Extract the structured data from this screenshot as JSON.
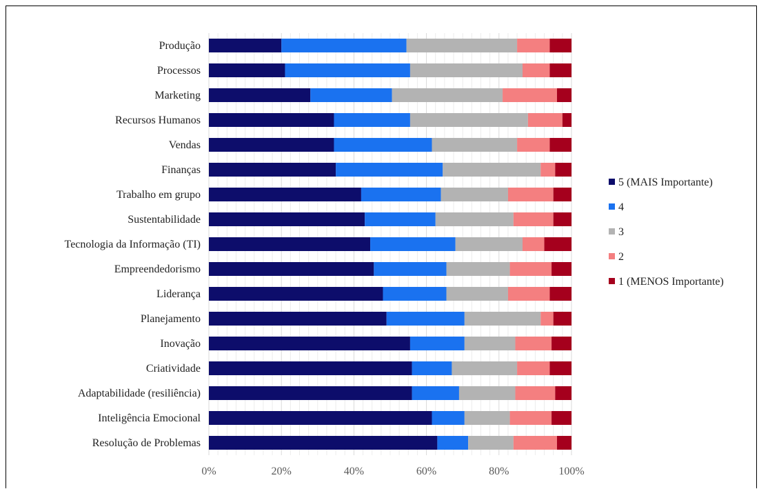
{
  "chart_data": {
    "type": "bar",
    "orientation": "horizontal",
    "stacked": "percent",
    "title": "",
    "xlabel": "",
    "ylabel": "",
    "xlim": [
      0,
      100
    ],
    "x_ticks": [
      "0%",
      "20%",
      "40%",
      "60%",
      "80%",
      "100%"
    ],
    "grid": true,
    "legend_position": "right",
    "categories": [
      "Produção",
      "Processos",
      "Marketing",
      "Recursos Humanos",
      "Vendas",
      "Finanças",
      "Trabalho em grupo",
      "Sustentabilidade",
      "Tecnologia da Informação (TI)",
      "Empreendedorismo",
      "Liderança",
      "Planejamento",
      "Inovação",
      "Criatividade",
      "Adaptabilidade (resiliência)",
      "Inteligência Emocional",
      "Resolução de Problemas"
    ],
    "series": [
      {
        "name": "5 (MAIS Importante)",
        "color": "#0d0d6b",
        "values": [
          20,
          21,
          28,
          34.5,
          34.5,
          35,
          42,
          43,
          44.5,
          45.5,
          48,
          49,
          55.5,
          56,
          56,
          61.5,
          63
        ]
      },
      {
        "name": "4",
        "color": "#1a72f0",
        "values": [
          34.5,
          34.5,
          22.5,
          21,
          27,
          29.5,
          22,
          19.5,
          23.5,
          20,
          17.5,
          21.5,
          15,
          11,
          13,
          9,
          8.5
        ]
      },
      {
        "name": "3",
        "color": "#b3b3b3",
        "values": [
          30.5,
          31,
          30.5,
          32.5,
          23.5,
          27,
          18.5,
          21.5,
          18.5,
          17.5,
          17,
          21,
          14,
          18,
          15.5,
          12.5,
          12.5
        ]
      },
      {
        "name": "2",
        "color": "#f47f80",
        "values": [
          9,
          7.5,
          15,
          9.5,
          9,
          4,
          12.5,
          11,
          6,
          11.5,
          11.5,
          3.5,
          10,
          9,
          11,
          11.5,
          12
        ]
      },
      {
        "name": "1 (MENOS Importante)",
        "color": "#a5001d",
        "values": [
          6,
          6,
          4,
          2.5,
          6,
          4.5,
          5,
          5,
          7.5,
          5.5,
          6,
          5,
          5.5,
          6,
          4.5,
          5.5,
          4
        ]
      }
    ]
  }
}
